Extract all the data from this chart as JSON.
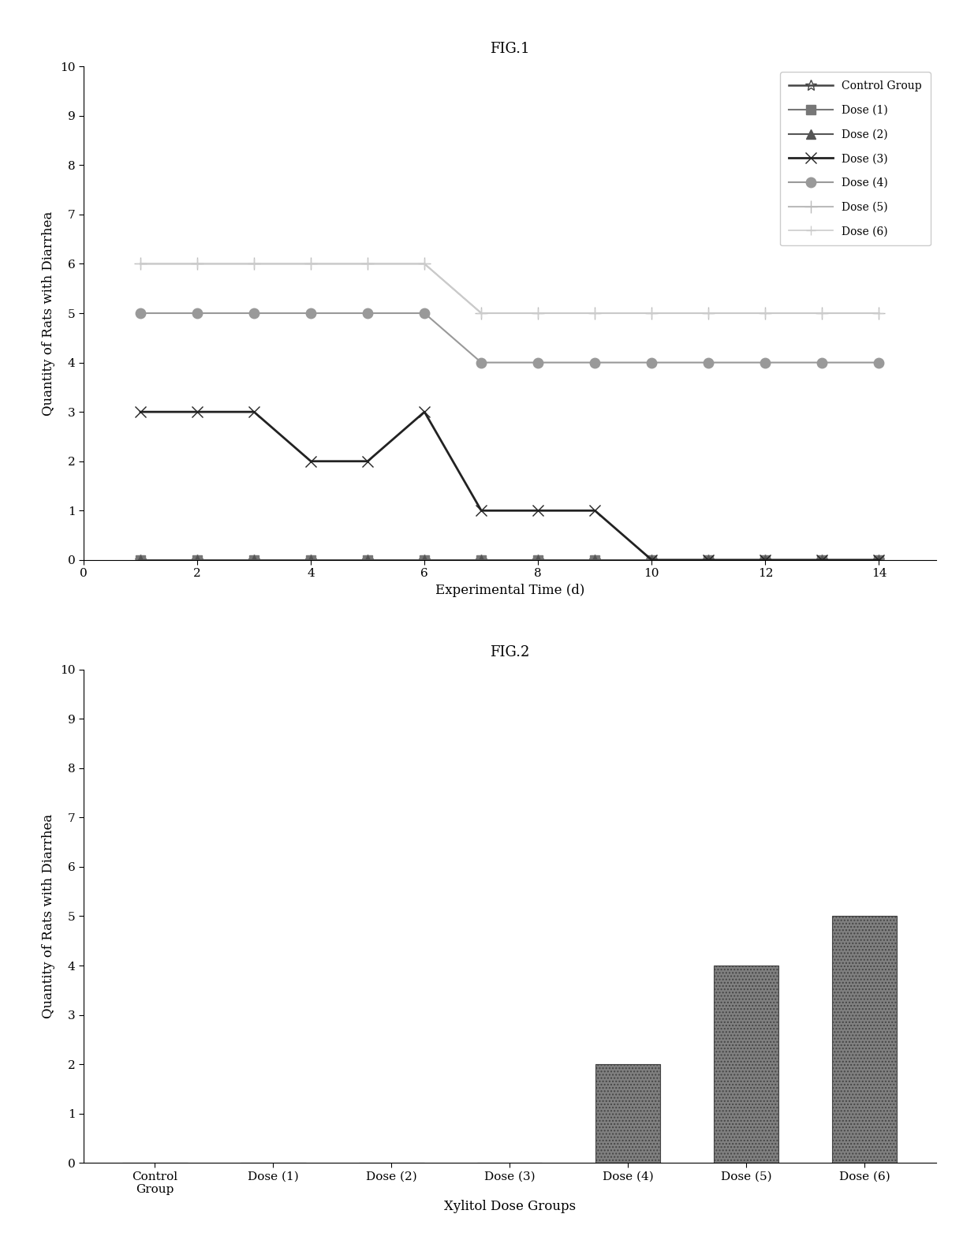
{
  "fig1_title": "FIG.1",
  "fig2_title": "FIG.2",
  "fig1_xlabel": "Experimental Time (d)",
  "fig1_ylabel": "Quantity of Rats with Diarrhea",
  "fig2_xlabel": "Xylitol Dose Groups",
  "fig2_ylabel": "Quantity of Rats with Diarrhea",
  "fig1_xlim": [
    0,
    15
  ],
  "fig1_ylim": [
    0,
    10
  ],
  "fig1_xticks": [
    0,
    2,
    4,
    6,
    8,
    10,
    12,
    14
  ],
  "fig1_yticks": [
    0,
    1,
    2,
    3,
    4,
    5,
    6,
    7,
    8,
    9,
    10
  ],
  "fig2_categories": [
    "Control\nGroup",
    "Dose (1)",
    "Dose (2)",
    "Dose (3)",
    "Dose (4)",
    "Dose (5)",
    "Dose (6)"
  ],
  "fig2_ylim": [
    0,
    10
  ],
  "fig2_yticks": [
    0,
    1,
    2,
    3,
    4,
    5,
    6,
    7,
    8,
    9,
    10
  ],
  "fig2_bar_values": [
    0,
    0,
    0,
    0,
    2,
    4,
    5
  ],
  "fig2_bar_color": "#808080",
  "series": [
    {
      "label": "Control Group",
      "x": [
        1,
        2,
        3,
        4,
        5,
        6,
        7,
        8,
        9,
        10,
        11,
        12,
        13,
        14
      ],
      "y": [
        0,
        0,
        0,
        0,
        0,
        0,
        0,
        0,
        0,
        0,
        0,
        0,
        0,
        0
      ],
      "color": "#444444",
      "marker": "*",
      "linestyle": "-",
      "linewidth": 1.8,
      "markersize": 10
    },
    {
      "label": "Dose (1)",
      "x": [
        1,
        2,
        3,
        4,
        5,
        6,
        7,
        8,
        9,
        10,
        11,
        12,
        13,
        14
      ],
      "y": [
        0,
        0,
        0,
        0,
        0,
        0,
        0,
        0,
        0,
        0,
        0,
        0,
        0,
        0
      ],
      "color": "#777777",
      "marker": "s",
      "linestyle": "-",
      "linewidth": 1.5,
      "markersize": 8
    },
    {
      "label": "Dose (2)",
      "x": [
        1,
        2,
        3,
        4,
        5,
        6,
        7,
        8,
        9,
        10,
        11,
        12,
        13,
        14
      ],
      "y": [
        0,
        0,
        0,
        0,
        0,
        0,
        0,
        0,
        0,
        0,
        0,
        0,
        0,
        0
      ],
      "color": "#555555",
      "marker": "^",
      "linestyle": "-",
      "linewidth": 1.5,
      "markersize": 8
    },
    {
      "label": "Dose (3)",
      "x": [
        1,
        2,
        3,
        4,
        5,
        6,
        7,
        8,
        9,
        10,
        11,
        12,
        13,
        14
      ],
      "y": [
        3,
        3,
        3,
        2,
        2,
        3,
        1,
        1,
        1,
        0,
        0,
        0,
        0,
        0
      ],
      "color": "#222222",
      "marker": "x",
      "linestyle": "-",
      "linewidth": 2.0,
      "markersize": 10
    },
    {
      "label": "Dose (4)",
      "x": [
        1,
        2,
        3,
        4,
        5,
        6,
        7,
        8,
        9,
        10,
        11,
        12,
        13,
        14
      ],
      "y": [
        5,
        5,
        5,
        5,
        5,
        5,
        4,
        4,
        4,
        4,
        4,
        4,
        4,
        4
      ],
      "color": "#999999",
      "marker": "o",
      "linestyle": "-",
      "linewidth": 1.5,
      "markersize": 9
    },
    {
      "label": "Dose (5)",
      "x": [
        1,
        2,
        3,
        4,
        5,
        6,
        7,
        8,
        9,
        10,
        11,
        12,
        13,
        14
      ],
      "y": [
        6,
        6,
        6,
        6,
        6,
        6,
        5,
        5,
        5,
        5,
        5,
        5,
        5,
        5
      ],
      "color": "#bbbbbb",
      "marker": "+",
      "linestyle": "-",
      "linewidth": 1.5,
      "markersize": 11
    },
    {
      "label": "Dose (6)",
      "x": [
        1,
        2,
        3,
        4,
        5,
        6,
        7,
        8,
        9,
        10,
        11,
        12,
        13,
        14
      ],
      "y": [
        6,
        6,
        6,
        6,
        6,
        6,
        5,
        5,
        5,
        5,
        5,
        5,
        5,
        5
      ],
      "color": "#cccccc",
      "marker": "+",
      "linestyle": "-",
      "linewidth": 1.2,
      "markersize": 8
    }
  ],
  "background_color": "#ffffff",
  "text_color": "#000000",
  "font_family": "serif"
}
